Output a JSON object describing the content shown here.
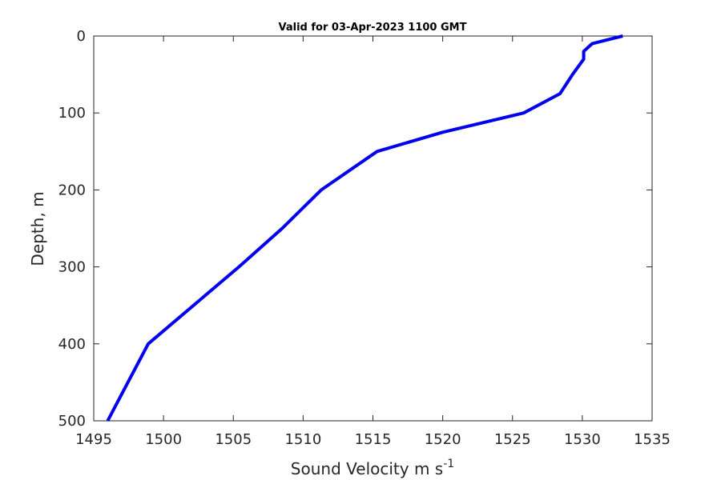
{
  "chart_data": {
    "type": "line",
    "title": "Valid for 03-Apr-2023 1100 GMT",
    "xlabel": "Sound Velocity m s",
    "xlabel_superscript": "-1",
    "ylabel": "Depth, m",
    "xlim": [
      1495,
      1535
    ],
    "ylim": [
      0,
      500
    ],
    "y_reversed": true,
    "grid": false,
    "x_ticks": [
      1495,
      1500,
      1505,
      1510,
      1515,
      1520,
      1525,
      1530,
      1535
    ],
    "y_ticks": [
      0,
      100,
      200,
      300,
      400,
      500
    ],
    "series": [
      {
        "color": "#0000ee",
        "points": [
          {
            "x": 1532.9,
            "y": 0
          },
          {
            "x": 1530.7,
            "y": 10
          },
          {
            "x": 1530.1,
            "y": 20
          },
          {
            "x": 1530.1,
            "y": 30
          },
          {
            "x": 1529.3,
            "y": 50
          },
          {
            "x": 1528.4,
            "y": 75
          },
          {
            "x": 1525.8,
            "y": 100
          },
          {
            "x": 1520.0,
            "y": 125
          },
          {
            "x": 1515.3,
            "y": 150
          },
          {
            "x": 1511.3,
            "y": 200
          },
          {
            "x": 1508.5,
            "y": 250
          },
          {
            "x": 1505.4,
            "y": 300
          },
          {
            "x": 1498.9,
            "y": 400
          },
          {
            "x": 1496.0,
            "y": 500
          }
        ]
      }
    ]
  }
}
